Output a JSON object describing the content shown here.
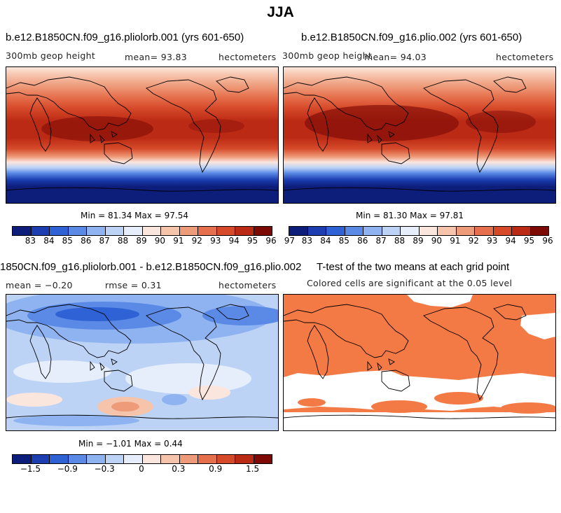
{
  "title": "JJA",
  "colors": {
    "seq": [
      "#0d1d7a",
      "#1c3eb0",
      "#2f62d4",
      "#5a8ae6",
      "#8fb3f0",
      "#bcd3f6",
      "#e6eefb",
      "#fbe6dd",
      "#f6c3ab",
      "#ee9b7a",
      "#e6704d",
      "#d64a2a",
      "#bb2a14",
      "#7e0a06"
    ],
    "diff": [
      "#0d1d7a",
      "#1c3eb0",
      "#2f62d4",
      "#5a8ae6",
      "#8fb3f0",
      "#bcd3f6",
      "#e6eefb",
      "#fbe6dd",
      "#f6c3ab",
      "#ee9b7a",
      "#e6704d",
      "#d64a2a",
      "#bb2a14",
      "#7e0a06"
    ],
    "sig": "#f47a45"
  },
  "panels": [
    {
      "title": "b.e12.B1850CN.f09_g16.pliolorb.001 (yrs 601-650)",
      "variable": "300mb geop height",
      "stat": "mean=  93.83",
      "units": "hectometers",
      "minmax": "Min =  81.34 Max =  97.54"
    },
    {
      "title": "b.e12.B1850CN.f09_g16.plio.002 (yrs 601-650)",
      "variable": "300mb geop height",
      "stat": "mean=  94.03",
      "units": "hectometers",
      "minmax": "Min =  81.30 Max =  97.81"
    },
    {
      "title": "1850CN.f09_g16.pliolorb.001 - b.e12.B1850CN.f09_g16.plio.002",
      "stat_mean": "mean =  −0.20",
      "stat_rmse": "rmse =   0.31",
      "units": "hectometers",
      "minmax": "Min =  −1.01 Max =   0.44"
    },
    {
      "title": "T-test of the two means at each grid point",
      "subtitle": "Colored cells are significant at the 0.05 level"
    }
  ],
  "colorbar_seq_ticks": [
    "83",
    "84",
    "85",
    "86",
    "87",
    "88",
    "89",
    "90",
    "91",
    "92",
    "93",
    "94",
    "95",
    "96",
    "97"
  ],
  "colorbar_diff_ticks": [
    "−1.5",
    "−0.9",
    "−0.3",
    "0",
    "0.3",
    "0.9",
    "1.5"
  ]
}
